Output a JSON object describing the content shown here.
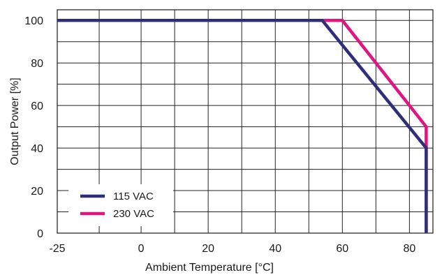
{
  "chart_data": {
    "type": "line",
    "xlabel": "Ambient Temperature [°C]",
    "ylabel": "Output Power [%]",
    "xlim": [
      -25,
      87
    ],
    "ylim": [
      0,
      105
    ],
    "x_ticks": [
      -25,
      0,
      20,
      40,
      60,
      80
    ],
    "y_ticks": [
      0,
      20,
      40,
      60,
      80,
      100
    ],
    "x_grid": [
      -25,
      -12.5,
      0,
      10,
      20,
      30,
      40,
      50,
      60,
      70,
      80
    ],
    "y_grid": [
      0,
      10,
      20,
      30,
      40,
      50,
      60,
      70,
      80,
      90,
      100
    ],
    "grid": true,
    "legend_position": "bottom-left",
    "series": [
      {
        "name": "115 VAC",
        "color": "#2e2e7a",
        "points": [
          [
            -25,
            100
          ],
          [
            54,
            100
          ],
          [
            85,
            40
          ],
          [
            85,
            0
          ]
        ]
      },
      {
        "name": "230 VAC",
        "color": "#e0157f",
        "points": [
          [
            -25,
            100
          ],
          [
            60,
            100
          ],
          [
            85,
            50
          ],
          [
            85,
            0
          ]
        ]
      }
    ]
  }
}
